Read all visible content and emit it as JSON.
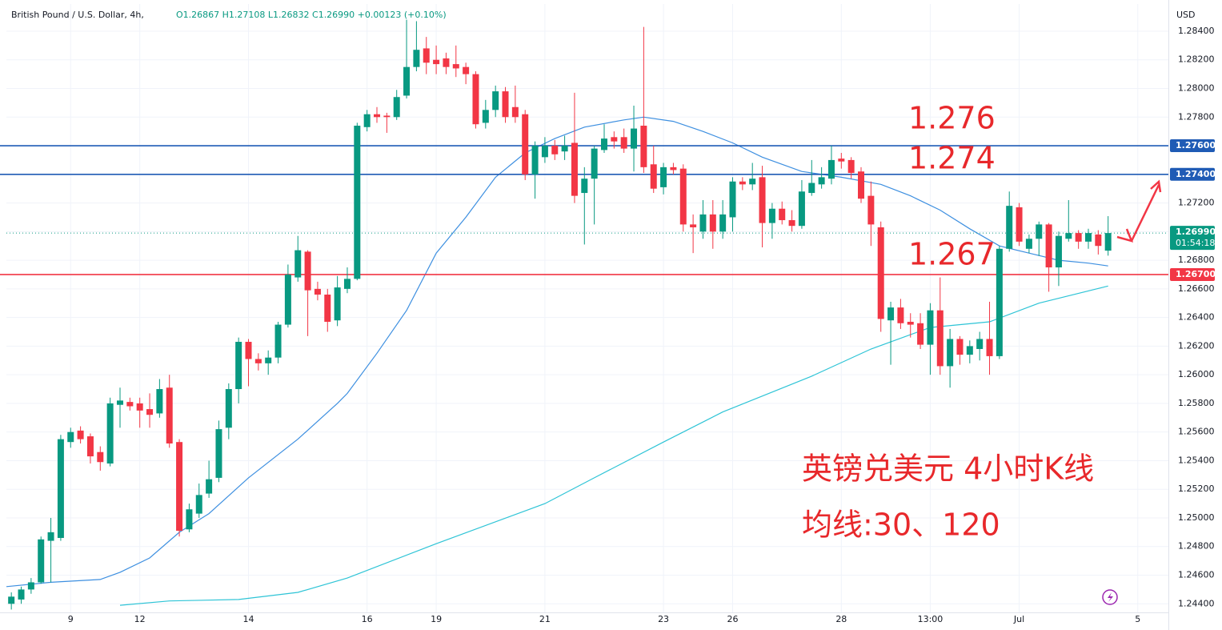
{
  "chart_data": {
    "type": "candlestick",
    "title": "British Pound / U.S. Dollar, 4h,",
    "ohlc_text": "O1.26867 H1.27108 L1.26832 C1.26990 +0.00123 (+0.10%)",
    "currency": "USD",
    "up_color": "#089981",
    "down_color": "#f23645",
    "open": [
      1.244,
      1.2443,
      1.245,
      1.2455,
      1.2484,
      1.2486,
      1.2553,
      1.2561,
      1.2557,
      1.2546,
      1.2538,
      1.2579,
      1.2581,
      1.258,
      1.2576,
      1.2573,
      1.2591,
      1.2553,
      1.2492,
      1.2503,
      1.2517,
      1.2528,
      1.2563,
      1.259,
      1.2623,
      1.2611,
      1.2608,
      1.2612,
      1.2635,
      1.2668,
      1.2686,
      1.266,
      1.2656,
      1.2638,
      1.266,
      1.2667,
      1.2773,
      1.2782,
      1.2781,
      1.278,
      1.2795,
      1.2815,
      1.2828,
      1.282,
      1.2821,
      1.2817,
      1.2815,
      1.281,
      1.2776,
      1.2785,
      1.2798,
      1.2787,
      1.2782,
      1.274,
      1.2752,
      1.276,
      1.2756,
      1.2762,
      1.2727,
      1.2737,
      1.2757,
      1.2766,
      1.2766,
      1.2758,
      1.2774,
      1.2747,
      1.2731,
      1.2745,
      1.2744,
      1.2705,
      1.27,
      1.2712,
      1.27,
      1.271,
      1.2735,
      1.2733,
      1.2738,
      1.2706,
      1.2716,
      1.2708,
      1.2704,
      1.2727,
      1.2733,
      1.2737,
      1.2751,
      1.275,
      1.2742,
      1.2725,
      1.2703,
      1.2638,
      1.2647,
      1.2637,
      1.2636,
      1.2621,
      1.2645,
      1.2606,
      1.2625,
      1.2614,
      1.2618,
      1.2625,
      1.2613,
      1.2688,
      1.2717,
      1.2688,
      1.2695,
      1.2705,
      1.2675,
      1.2695,
      1.2699,
      1.2693,
      1.2698,
      1.26867
    ],
    "high": [
      1.2448,
      1.2452,
      1.2458,
      1.2487,
      1.25,
      1.2558,
      1.2563,
      1.2564,
      1.2559,
      1.255,
      1.2584,
      1.2591,
      1.2584,
      1.2584,
      1.2587,
      1.2597,
      1.26,
      1.2555,
      1.251,
      1.2524,
      1.254,
      1.2568,
      1.2594,
      1.2626,
      1.2625,
      1.2615,
      1.2617,
      1.2637,
      1.2677,
      1.2697,
      1.2687,
      1.2665,
      1.266,
      1.2669,
      1.2675,
      1.2776,
      1.2785,
      1.2787,
      1.2783,
      1.2799,
      1.2848,
      1.2847,
      1.2836,
      1.283,
      1.2825,
      1.283,
      1.2818,
      1.2812,
      1.2792,
      1.2802,
      1.2801,
      1.2802,
      1.2785,
      1.2763,
      1.2766,
      1.2764,
      1.2767,
      1.2797,
      1.2745,
      1.276,
      1.2775,
      1.277,
      1.2772,
      1.2788,
      1.2843,
      1.276,
      1.2748,
      1.2748,
      1.2747,
      1.2712,
      1.2722,
      1.2722,
      1.2722,
      1.2738,
      1.2738,
      1.2748,
      1.2746,
      1.272,
      1.2721,
      1.2715,
      1.2736,
      1.275,
      1.2745,
      1.276,
      1.2755,
      1.2752,
      1.2745,
      1.2735,
      1.2707,
      1.2651,
      1.2653,
      1.2643,
      1.2643,
      1.265,
      1.2668,
      1.2632,
      1.2627,
      1.2624,
      1.263,
      1.2651,
      1.269,
      1.2728,
      1.272,
      1.2698,
      1.2707,
      1.2706,
      1.27,
      1.2722,
      1.2701,
      1.2702,
      1.2701,
      1.27108
    ],
    "low": [
      1.2436,
      1.244,
      1.2447,
      1.2454,
      1.2455,
      1.2484,
      1.2549,
      1.2552,
      1.2538,
      1.2533,
      1.2536,
      1.2563,
      1.2575,
      1.2563,
      1.2563,
      1.257,
      1.2549,
      1.2487,
      1.249,
      1.25,
      1.2514,
      1.2525,
      1.2555,
      1.258,
      1.2592,
      1.2603,
      1.26,
      1.2608,
      1.2633,
      1.2665,
      1.2627,
      1.2652,
      1.263,
      1.2634,
      1.2657,
      1.2666,
      1.277,
      1.2776,
      1.2769,
      1.2778,
      1.2793,
      1.2812,
      1.281,
      1.281,
      1.281,
      1.2808,
      1.2803,
      1.2772,
      1.2772,
      1.278,
      1.2776,
      1.2776,
      1.2736,
      1.2723,
      1.2748,
      1.275,
      1.275,
      1.272,
      1.2691,
      1.2705,
      1.2755,
      1.2758,
      1.2755,
      1.2742,
      1.2741,
      1.2727,
      1.2726,
      1.274,
      1.27,
      1.2685,
      1.2695,
      1.2688,
      1.2695,
      1.27,
      1.2729,
      1.2729,
      1.2689,
      1.2695,
      1.2705,
      1.27,
      1.2702,
      1.2725,
      1.273,
      1.2733,
      1.2744,
      1.2737,
      1.272,
      1.269,
      1.263,
      1.2607,
      1.2632,
      1.2626,
      1.2618,
      1.26,
      1.26,
      1.2591,
      1.2607,
      1.2608,
      1.261,
      1.26,
      1.2611,
      1.2686,
      1.269,
      1.2685,
      1.2683,
      1.2658,
      1.2662,
      1.2693,
      1.2688,
      1.2688,
      1.2684,
      1.26832
    ],
    "close": [
      1.2445,
      1.245,
      1.2455,
      1.2485,
      1.249,
      1.2555,
      1.256,
      1.2555,
      1.2543,
      1.2539,
      1.258,
      1.2582,
      1.2578,
      1.2575,
      1.2572,
      1.259,
      1.2552,
      1.2491,
      1.2506,
      1.2516,
      1.2527,
      1.2562,
      1.259,
      1.2623,
      1.2611,
      1.2608,
      1.2612,
      1.2635,
      1.267,
      1.2687,
      1.2659,
      1.2656,
      1.2637,
      1.2661,
      1.2667,
      1.2774,
      1.2782,
      1.278,
      1.278,
      1.2794,
      1.2815,
      1.2827,
      1.2818,
      1.2817,
      1.2815,
      1.2814,
      1.281,
      1.2775,
      1.2785,
      1.2798,
      1.278,
      1.278,
      1.274,
      1.276,
      1.276,
      1.2754,
      1.276,
      1.2725,
      1.2737,
      1.2758,
      1.2765,
      1.2763,
      1.2758,
      1.2772,
      1.2745,
      1.273,
      1.2745,
      1.2743,
      1.2705,
      1.2703,
      1.2712,
      1.27,
      1.2712,
      1.2735,
      1.2733,
      1.2737,
      1.2706,
      1.2716,
      1.2708,
      1.2704,
      1.2728,
      1.2734,
      1.2738,
      1.275,
      1.2749,
      1.2741,
      1.2723,
      1.2705,
      1.2639,
      1.2647,
      1.2636,
      1.2635,
      1.2621,
      1.2645,
      1.2606,
      1.2625,
      1.2614,
      1.262,
      1.2625,
      1.2613,
      1.2688,
      1.2718,
      1.2693,
      1.2695,
      1.2705,
      1.2675,
      1.2697,
      1.2699,
      1.2693,
      1.2699,
      1.269,
      1.2699
    ],
    "series": [
      {
        "color": "#3d8fe0",
        "x": [
          -0.5,
          4,
          9,
          11,
          14,
          17,
          20,
          24,
          29,
          33,
          34,
          37,
          40,
          43,
          46,
          49,
          52,
          55,
          58,
          62,
          64,
          67,
          70,
          73,
          76,
          80,
          84,
          88,
          91,
          94,
          97,
          100,
          103,
          106,
          109,
          111
        ],
        "values": [
          1.2452,
          1.2455,
          1.2457,
          1.2462,
          1.2472,
          1.249,
          1.2503,
          1.2528,
          1.2555,
          1.258,
          1.2587,
          1.2615,
          1.2645,
          1.2685,
          1.271,
          1.2738,
          1.2755,
          1.2765,
          1.2773,
          1.2778,
          1.278,
          1.2777,
          1.277,
          1.2762,
          1.2752,
          1.2742,
          1.2738,
          1.2733,
          1.2725,
          1.2715,
          1.2702,
          1.269,
          1.2685,
          1.268,
          1.2678,
          1.2676
        ]
      },
      {
        "color": "#2ec4d6",
        "x": [
          11,
          16,
          23,
          29,
          34,
          43,
          54,
          59,
          66,
          72,
          81,
          87,
          93,
          99,
          104,
          111
        ],
        "values": [
          1.2439,
          1.2442,
          1.2443,
          1.2448,
          1.2458,
          1.2482,
          1.251,
          1.2528,
          1.2553,
          1.2574,
          1.2599,
          1.2618,
          1.2633,
          1.2637,
          1.265,
          1.2662
        ]
      }
    ],
    "levels": [
      {
        "value": 1.276,
        "label": "1.27600",
        "color": "#1f5bb5"
      },
      {
        "value": 1.274,
        "label": "1.27400",
        "color": "#1f5bb5"
      },
      {
        "value": 1.267,
        "label": "1.26700",
        "color": "#f23645"
      }
    ],
    "last_price": {
      "value": 1.2699,
      "label": "1.26990",
      "countdown": "01:54:18"
    },
    "annotations": [
      "1.276",
      "1.274",
      "1.267",
      "英镑兑美元 4小时K线",
      "均线:30、120"
    ],
    "xlim": [
      -0.5,
      117.1
    ],
    "ylim": [
      1.2434,
      1.2859
    ],
    "xticks": [
      {
        "value": 6,
        "label": "9"
      },
      {
        "value": 13,
        "label": "12"
      },
      {
        "value": 24,
        "label": "14"
      },
      {
        "value": 36,
        "label": "16"
      },
      {
        "value": 43,
        "label": "19"
      },
      {
        "value": 54,
        "label": "21"
      },
      {
        "value": 66,
        "label": "23"
      },
      {
        "value": 73,
        "label": "26"
      },
      {
        "value": 84,
        "label": "28"
      },
      {
        "value": 93,
        "label": "13:00"
      },
      {
        "value": 102,
        "label": "Jul"
      },
      {
        "value": 114,
        "label": "5"
      }
    ],
    "yticks": [
      {
        "value": 1.244,
        "label": "1.24400"
      },
      {
        "value": 1.246,
        "label": "1.24600"
      },
      {
        "value": 1.248,
        "label": "1.24800"
      },
      {
        "value": 1.25,
        "label": "1.25000"
      },
      {
        "value": 1.252,
        "label": "1.25200"
      },
      {
        "value": 1.254,
        "label": "1.25400"
      },
      {
        "value": 1.256,
        "label": "1.25600"
      },
      {
        "value": 1.258,
        "label": "1.25800"
      },
      {
        "value": 1.26,
        "label": "1.26000"
      },
      {
        "value": 1.262,
        "label": "1.26200"
      },
      {
        "value": 1.264,
        "label": "1.26400"
      },
      {
        "value": 1.266,
        "label": "1.26600"
      },
      {
        "value": 1.268,
        "label": "1.26800"
      },
      {
        "value": 1.27,
        "label": "1.27000"
      },
      {
        "value": 1.272,
        "label": "1.27200"
      },
      {
        "value": 1.274,
        "label": "1.27400"
      },
      {
        "value": 1.276,
        "label": "1.27600"
      },
      {
        "value": 1.278,
        "label": "1.27800"
      },
      {
        "value": 1.28,
        "label": "1.28000"
      },
      {
        "value": 1.282,
        "label": "1.28200"
      },
      {
        "value": 1.284,
        "label": "1.28400"
      }
    ]
  }
}
